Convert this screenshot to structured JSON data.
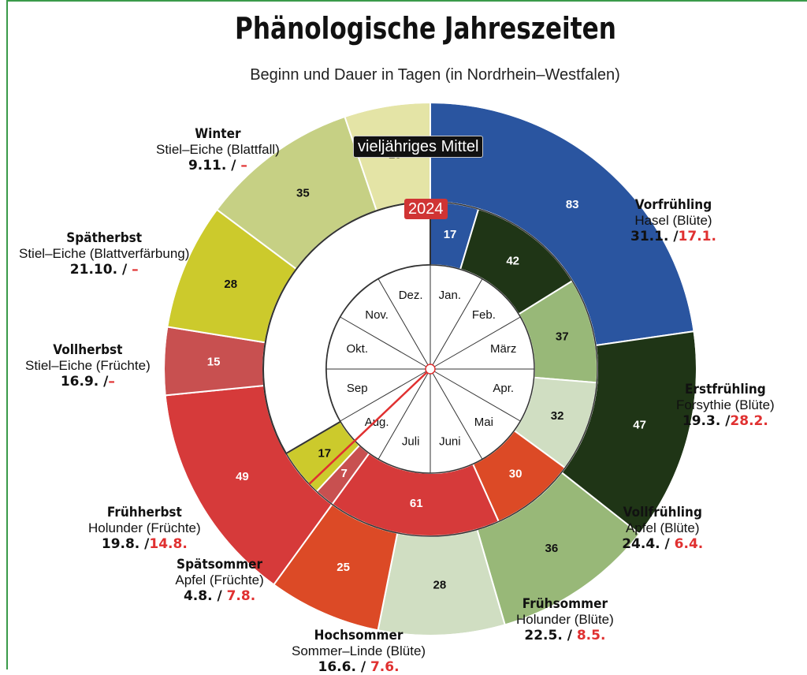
{
  "title": "Phänologische Jahreszeiten",
  "subtitle": "Beginn und Dauer in Tagen (in Nordrhein–Westfalen)",
  "outer_caption": "vieljähriges Mittel",
  "inner_caption": "2024",
  "months": [
    "Jan.",
    "Feb.",
    "März",
    "Apr.",
    "Mai",
    "Juni",
    "Juli",
    "Aug.",
    "Sep",
    "Okt.",
    "Nov.",
    "Dez."
  ],
  "seasons": [
    {
      "name": "Vorfrühling",
      "plant": "Hasel (Blüte)",
      "mean_date": "31.1. /",
      "date_2024": "17.1."
    },
    {
      "name": "Erstfrühling",
      "plant": "Forsythie (Blüte)",
      "mean_date": "19.3. /",
      "date_2024": "28.2."
    },
    {
      "name": "Vollfrühling",
      "plant": "Apfel (Blüte)",
      "mean_date": "24.4. /",
      "date_2024": " 6.4."
    },
    {
      "name": "Frühsommer",
      "plant": "Holunder (Blüte)",
      "mean_date": "22.5. /",
      "date_2024": " 8.5."
    },
    {
      "name": "Hochsommer",
      "plant": "Sommer–Linde (Blüte)",
      "mean_date": "16.6. /",
      "date_2024": " 7.6."
    },
    {
      "name": "Spätsommer",
      "plant": "Apfel (Früchte)",
      "mean_date": "4.8. /",
      "date_2024": " 7.8."
    },
    {
      "name": "Frühherbst",
      "plant": "Holunder (Früchte)",
      "mean_date": "19.8. /",
      "date_2024": "14.8."
    },
    {
      "name": "Vollherbst",
      "plant": "Stiel–Eiche (Früchte)",
      "mean_date": "16.9. /",
      "date_2024": "–"
    },
    {
      "name": "Spätherbst",
      "plant": "Stiel–Eiche (Blattverfärbung)",
      "mean_date": "21.10. /",
      "date_2024": " –"
    },
    {
      "name": "Winter",
      "plant": "Stiel–Eiche (Blattfall)",
      "mean_date": "9.11. /",
      "date_2024": " –"
    }
  ],
  "chart_data": {
    "type": "pie",
    "rings": [
      {
        "name": "vieljähriges Mittel",
        "start_offset_days": 0,
        "segments": [
          {
            "season": "Winter",
            "days": 83,
            "color": "#2a55a0"
          },
          {
            "season": "Vorfrühling",
            "days": 47,
            "color": "#1f3516"
          },
          {
            "season": "Erstfrühling",
            "days": 36,
            "color": "#98b878"
          },
          {
            "season": "Vollfrühling",
            "days": 28,
            "color": "#d0dec2"
          },
          {
            "season": "Frühsommer",
            "days": 25,
            "color": "#dc4a26"
          },
          {
            "season": "Hochsommer",
            "days": 49,
            "color": "#d63a3a"
          },
          {
            "season": "Spätsommer",
            "days": 15,
            "color": "#c85050"
          },
          {
            "season": "Frühherbst",
            "days": 28,
            "color": "#ccca2c"
          },
          {
            "season": "Vollherbst",
            "days": 35,
            "color": "#c6d084"
          },
          {
            "season": "Spätherbst",
            "days": 19,
            "color": "#e4e4a6"
          }
        ]
      },
      {
        "name": "2024",
        "start_offset_days": 0,
        "segments": [
          {
            "season": "Winter",
            "days": 17,
            "color": "#2a55a0"
          },
          {
            "season": "Vorfrühling",
            "days": 42,
            "color": "#1f3516"
          },
          {
            "season": "Erstfrühling",
            "days": 37,
            "color": "#98b878"
          },
          {
            "season": "Vollfrühling",
            "days": 32,
            "color": "#d0dec2"
          },
          {
            "season": "Frühsommer",
            "days": 30,
            "color": "#dc4a26"
          },
          {
            "season": "Hochsommer",
            "days": 61,
            "color": "#d63a3a"
          },
          {
            "season": "Spätsommer",
            "days": 7,
            "color": "#c85050"
          },
          {
            "season": "Frühherbst",
            "days": 17,
            "color": "#ccca2c"
          },
          {
            "season": "unknown",
            "days": 122,
            "color": "#ffffff"
          }
        ]
      }
    ],
    "today_marker_month": "Aug."
  }
}
